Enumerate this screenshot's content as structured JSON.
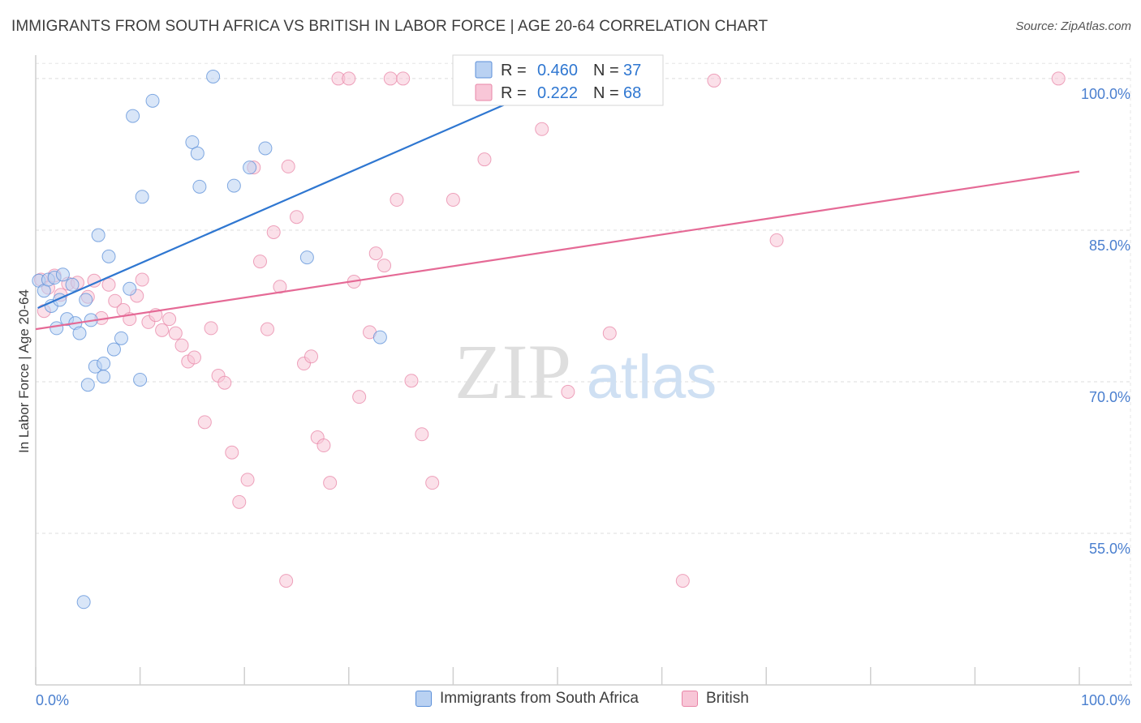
{
  "header": {
    "title": "IMMIGRANTS FROM SOUTH AFRICA VS BRITISH IN LABOR FORCE | AGE 20-64 CORRELATION CHART",
    "source": "Source: ZipAtlas.com"
  },
  "watermark": {
    "zip": "ZIP",
    "atlas": "atlas"
  },
  "chart_data": {
    "type": "scatter",
    "title": "IMMIGRANTS FROM SOUTH AFRICA VS BRITISH IN LABOR FORCE | AGE 20-64 CORRELATION CHART",
    "xlabel": "",
    "ylabel": "In Labor Force | Age 20-64",
    "xlim": [
      0,
      100
    ],
    "ylim": [
      40,
      102
    ],
    "x_tick_labels": [
      "0.0%",
      "100.0%"
    ],
    "y_ticks": [
      {
        "value": 100,
        "label": "100.0%"
      },
      {
        "value": 85,
        "label": "85.0%"
      },
      {
        "value": 70,
        "label": "70.0%"
      },
      {
        "value": 55,
        "label": "55.0%"
      }
    ],
    "grid": true,
    "legend": {
      "position": "top-center",
      "entries": [
        {
          "r_label": "R =",
          "r_value": "0.460",
          "n_label": "N =",
          "n_value": "37"
        },
        {
          "r_label": "R =",
          "r_value": "0.222",
          "n_label": "N =",
          "n_value": "68"
        }
      ]
    },
    "series": [
      {
        "name": "Immigrants from South Africa",
        "color": "#5b8fd8",
        "fill": "#b9d1f2",
        "line_color": "#2f77d1",
        "trend": {
          "x": [
            0.2,
            52
          ],
          "y": [
            77.3,
            100.6
          ]
        },
        "points": [
          [
            0.3,
            80.0
          ],
          [
            0.8,
            79.0
          ],
          [
            1.2,
            80.1
          ],
          [
            1.5,
            77.5
          ],
          [
            1.8,
            80.3
          ],
          [
            2.0,
            75.3
          ],
          [
            2.3,
            78.1
          ],
          [
            2.6,
            80.6
          ],
          [
            3.0,
            76.2
          ],
          [
            3.5,
            79.6
          ],
          [
            3.8,
            75.8
          ],
          [
            4.2,
            74.8
          ],
          [
            4.8,
            78.1
          ],
          [
            5.3,
            76.1
          ],
          [
            4.6,
            48.2
          ],
          [
            5.0,
            69.7
          ],
          [
            5.7,
            71.5
          ],
          [
            7.0,
            82.4
          ],
          [
            6.0,
            84.5
          ],
          [
            7.5,
            73.2
          ],
          [
            8.2,
            74.3
          ],
          [
            6.5,
            71.8
          ],
          [
            6.5,
            70.5
          ],
          [
            9.0,
            79.2
          ],
          [
            10.0,
            70.2
          ],
          [
            9.3,
            96.3
          ],
          [
            10.2,
            88.3
          ],
          [
            11.2,
            97.8
          ],
          [
            15.0,
            93.7
          ],
          [
            15.5,
            92.6
          ],
          [
            15.7,
            89.3
          ],
          [
            17.0,
            100.2
          ],
          [
            19.0,
            89.4
          ],
          [
            20.5,
            91.2
          ],
          [
            22.0,
            93.1
          ],
          [
            26.0,
            82.3
          ],
          [
            33.0,
            74.4
          ]
        ]
      },
      {
        "name": "British",
        "color": "#e885a7",
        "fill": "#f8c6d7",
        "line_color": "#e56a96",
        "trend": {
          "x": [
            0,
            100
          ],
          "y": [
            75.2,
            90.8
          ]
        },
        "points": [
          [
            0.5,
            80.1
          ],
          [
            1.2,
            79.3
          ],
          [
            1.8,
            80.5
          ],
          [
            2.4,
            78.6
          ],
          [
            3.1,
            79.7
          ],
          [
            4.0,
            79.8
          ],
          [
            5.0,
            78.4
          ],
          [
            5.6,
            80.0
          ],
          [
            6.3,
            76.3
          ],
          [
            7.0,
            79.6
          ],
          [
            7.6,
            78.0
          ],
          [
            8.4,
            77.1
          ],
          [
            9.0,
            76.2
          ],
          [
            9.7,
            78.5
          ],
          [
            10.2,
            80.1
          ],
          [
            10.8,
            75.9
          ],
          [
            11.5,
            76.6
          ],
          [
            12.1,
            75.1
          ],
          [
            12.8,
            76.2
          ],
          [
            13.4,
            74.8
          ],
          [
            14.0,
            73.6
          ],
          [
            14.6,
            72.0
          ],
          [
            15.2,
            72.4
          ],
          [
            16.2,
            66.0
          ],
          [
            16.8,
            75.3
          ],
          [
            17.5,
            70.6
          ],
          [
            18.1,
            69.9
          ],
          [
            18.8,
            63.0
          ],
          [
            19.5,
            58.1
          ],
          [
            20.3,
            60.3
          ],
          [
            20.9,
            91.2
          ],
          [
            21.5,
            81.9
          ],
          [
            22.2,
            75.2
          ],
          [
            22.8,
            84.8
          ],
          [
            23.4,
            79.4
          ],
          [
            24.2,
            91.3
          ],
          [
            25.0,
            86.3
          ],
          [
            25.7,
            71.8
          ],
          [
            26.4,
            72.5
          ],
          [
            27.0,
            64.5
          ],
          [
            27.6,
            63.7
          ],
          [
            28.2,
            60.0
          ],
          [
            24.0,
            50.3
          ],
          [
            29.0,
            100.0
          ],
          [
            30.0,
            100.0
          ],
          [
            30.5,
            79.9
          ],
          [
            31.0,
            68.5
          ],
          [
            32.0,
            74.9
          ],
          [
            32.6,
            82.7
          ],
          [
            33.4,
            81.5
          ],
          [
            34.0,
            100.0
          ],
          [
            34.6,
            88.0
          ],
          [
            35.2,
            100.0
          ],
          [
            36.0,
            70.1
          ],
          [
            37.0,
            64.8
          ],
          [
            38.0,
            60.0
          ],
          [
            40.0,
            88.0
          ],
          [
            43.0,
            92.0
          ],
          [
            47.0,
            100.0
          ],
          [
            48.5,
            95.0
          ],
          [
            51.0,
            69.0
          ],
          [
            52.0,
            100.0
          ],
          [
            55.0,
            74.8
          ],
          [
            62.0,
            50.3
          ],
          [
            65.0,
            99.8
          ],
          [
            71.0,
            84.0
          ],
          [
            98.0,
            100.0
          ],
          [
            0.8,
            77.0
          ]
        ]
      }
    ]
  }
}
